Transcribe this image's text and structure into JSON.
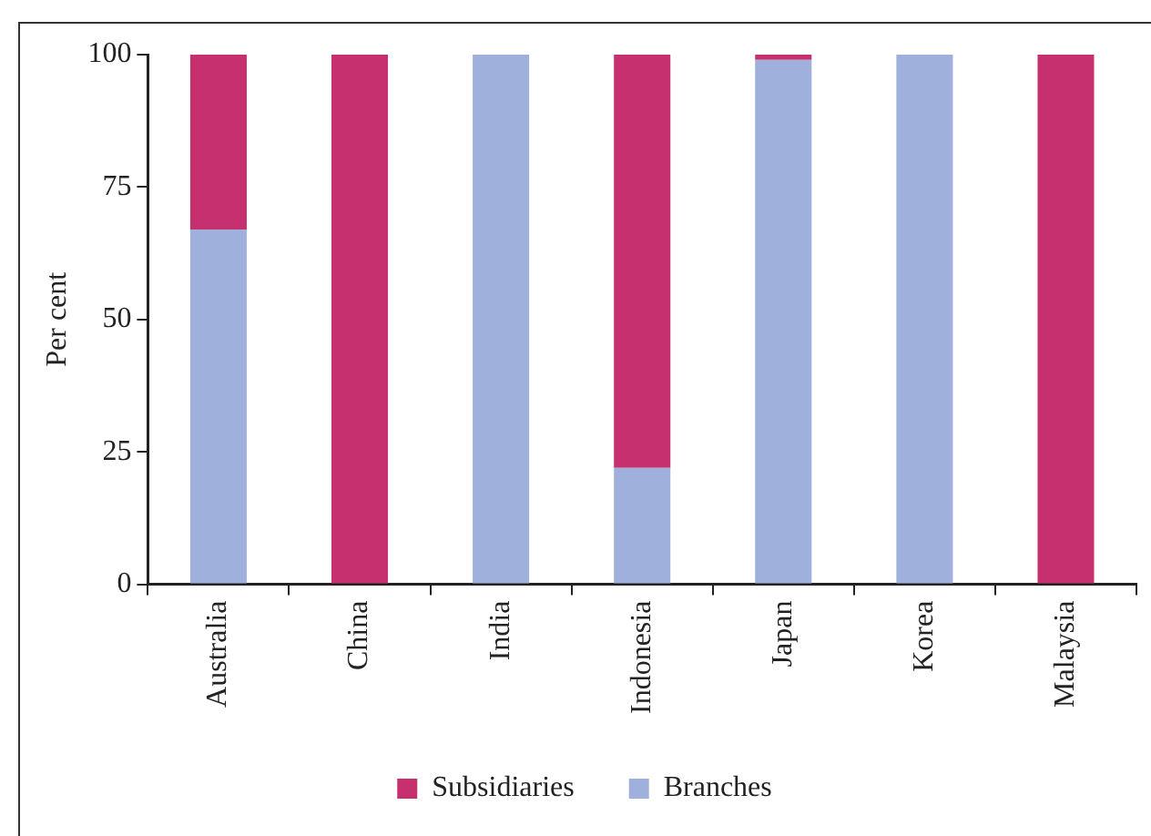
{
  "chart_data": {
    "type": "bar",
    "ylabel": "Per cent",
    "categories": [
      "Australia",
      "China",
      "India",
      "Indonesia",
      "Japan",
      "Korea",
      "Malaysia"
    ],
    "stacked": true,
    "series": [
      {
        "name": "Branches",
        "color": "#a0b0dc",
        "values": [
          67,
          0,
          100,
          22,
          99,
          100,
          0
        ]
      },
      {
        "name": "Subsidiaries",
        "color": "#c7306f",
        "values": [
          33,
          100,
          0,
          78,
          1,
          0,
          100
        ]
      }
    ],
    "ylim": [
      0,
      100
    ],
    "yticks": [
      0,
      25,
      50,
      75,
      100
    ],
    "grid": false,
    "legend": "bottom"
  }
}
